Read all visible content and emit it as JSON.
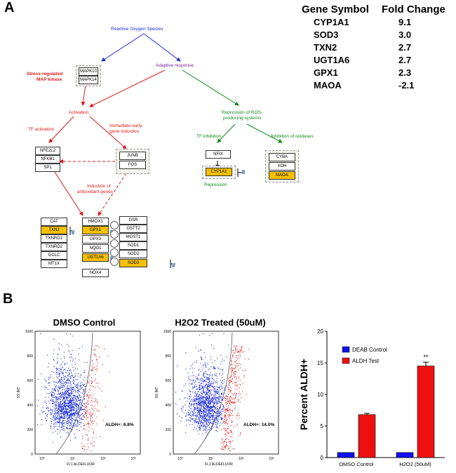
{
  "panel_a_label": "A",
  "panel_b_label": "B",
  "pathway": {
    "ros": "Reactive Oxygen Species",
    "stress_map_1": "Stress-regulated",
    "stress_map_2": "MAP kinase",
    "adaptive": "Adaptive response",
    "activation": "Activation",
    "tf_activation": "TF activation",
    "ieg_1": "Immediate-early",
    "ieg_2": "gene induction",
    "repression_ros_1": "Repression of ROS-",
    "repression_ros_2": "producing systems",
    "tf_inhibition": "TF inhibition",
    "inhibition_oxidases": "Inhibition of oxidases",
    "repression": "Repression",
    "antiox_1": "Induction of",
    "antiox_2": "antioxidant genes",
    "genes": {
      "mapk": [
        "MAPK10",
        "MAPK14"
      ],
      "tf": [
        "NFE2L2",
        "NFKB1",
        "SP1"
      ],
      "ieg": [
        "JUNB",
        "FOS"
      ],
      "nfix": "NFIX",
      "cyp": "CYP1A1",
      "oxidases": [
        "CYBA",
        "XDH",
        "MAOA"
      ],
      "col1": [
        "CAT",
        "TXN2",
        "TXNRD1",
        "TXNRD2",
        "GCLC",
        "MT1X"
      ],
      "col2": [
        "HMOX1",
        "GPX1",
        "GPX3",
        "NQO1",
        "UGT1A6",
        "NOX4"
      ],
      "col3": [
        "GSR",
        "GSTT2",
        "MGST1",
        "SOD1",
        "SOD2",
        "SOD3"
      ]
    }
  },
  "fold_table": {
    "header_gene": "Gene Symbol",
    "header_fold": "Fold Change",
    "rows": [
      {
        "gene": "CYP1A1",
        "fold": "9.1"
      },
      {
        "gene": "SOD3",
        "fold": "3.0"
      },
      {
        "gene": "TXN2",
        "fold": "2.7"
      },
      {
        "gene": "UGT1A6",
        "fold": "2.7"
      },
      {
        "gene": "GPX1",
        "fold": "2.3"
      },
      {
        "gene": "MAOA",
        "fold": "-2.1"
      }
    ]
  },
  "flow": {
    "plot1": {
      "title": "DMSO Control",
      "gate": "ALDH+: 6.8%"
    },
    "plot2": {
      "title": "H2O2 Treated (50uM)",
      "gate": "ALDH+: 14.0%"
    },
    "ylabel": "SS INT",
    "xlabel": "FL1 ALDEFLUOR",
    "yticks": [
      "1000",
      "800",
      "600",
      "400",
      "200",
      "0"
    ],
    "xticks": [
      "10⁰",
      "10¹",
      "10²",
      "10³"
    ]
  },
  "chart_data": {
    "type": "bar",
    "title": "",
    "ylabel": "Percent ALDH+",
    "xlabel": "",
    "ylim": [
      0,
      20
    ],
    "yticks": [
      "0",
      "5",
      "10",
      "15",
      "20"
    ],
    "categories": [
      "DMSO Control",
      "H2O2 (50uM)"
    ],
    "series": [
      {
        "name": "DEAB Control",
        "color": "#1010ee",
        "values": [
          0.8,
          0.8
        ],
        "errors": [
          0,
          0
        ]
      },
      {
        "name": "ALDH Test",
        "color": "#ee1010",
        "values": [
          6.8,
          14.5
        ],
        "errors": [
          0.2,
          0.6
        ]
      }
    ],
    "annotation": "**",
    "legend": "top-left"
  },
  "colors": {
    "blue": "#1a2bd6",
    "red": "#e01818",
    "green": "#0a8a1a",
    "purple": "#7a1a9a",
    "gene_highlight": "#f5c000"
  }
}
